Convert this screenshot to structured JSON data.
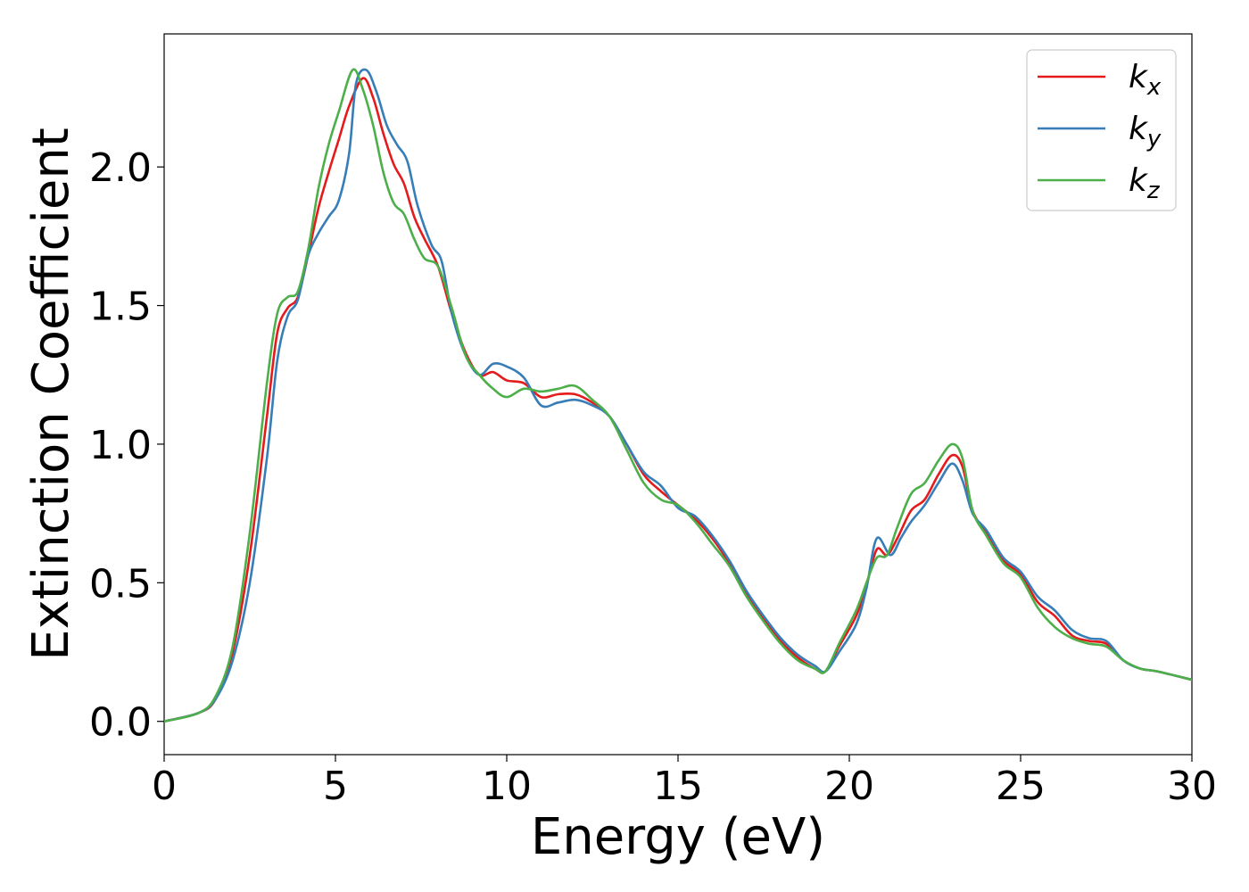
{
  "chart_data": {
    "type": "line",
    "title": "",
    "xlabel": "Energy (eV)",
    "ylabel": "Extinction Coefficient",
    "xlim": [
      0,
      30
    ],
    "ylim": [
      -0.12,
      2.48
    ],
    "xticks": [
      0,
      5,
      10,
      15,
      20,
      25,
      30
    ],
    "yticks": [
      0.0,
      0.5,
      1.0,
      1.5,
      2.0
    ],
    "xtick_labels": [
      "0",
      "5",
      "10",
      "15",
      "20",
      "25",
      "30"
    ],
    "ytick_labels": [
      "0.0",
      "0.5",
      "1.0",
      "1.5",
      "2.0"
    ],
    "grid": false,
    "legend_position": "top-right",
    "series": [
      {
        "name": "k",
        "subscript": "x",
        "color": "#e41a1c",
        "points": [
          [
            0,
            0
          ],
          [
            1,
            0.03
          ],
          [
            1.5,
            0.08
          ],
          [
            2,
            0.25
          ],
          [
            2.5,
            0.6
          ],
          [
            3,
            1.1
          ],
          [
            3.3,
            1.4
          ],
          [
            3.6,
            1.49
          ],
          [
            3.9,
            1.53
          ],
          [
            4.2,
            1.68
          ],
          [
            4.5,
            1.85
          ],
          [
            4.8,
            1.98
          ],
          [
            5.1,
            2.1
          ],
          [
            5.4,
            2.22
          ],
          [
            5.8,
            2.32
          ],
          [
            6.1,
            2.25
          ],
          [
            6.4,
            2.12
          ],
          [
            6.7,
            2.01
          ],
          [
            7,
            1.94
          ],
          [
            7.3,
            1.82
          ],
          [
            7.6,
            1.74
          ],
          [
            8,
            1.64
          ],
          [
            8.4,
            1.47
          ],
          [
            8.8,
            1.33
          ],
          [
            9.2,
            1.25
          ],
          [
            9.6,
            1.26
          ],
          [
            10,
            1.23
          ],
          [
            10.5,
            1.22
          ],
          [
            11,
            1.17
          ],
          [
            11.5,
            1.18
          ],
          [
            12,
            1.18
          ],
          [
            12.5,
            1.15
          ],
          [
            13,
            1.1
          ],
          [
            13.5,
            1.0
          ],
          [
            14,
            0.89
          ],
          [
            14.5,
            0.83
          ],
          [
            15,
            0.78
          ],
          [
            15.5,
            0.73
          ],
          [
            16,
            0.66
          ],
          [
            16.5,
            0.57
          ],
          [
            17,
            0.46
          ],
          [
            17.5,
            0.37
          ],
          [
            18,
            0.29
          ],
          [
            18.5,
            0.23
          ],
          [
            19,
            0.19
          ],
          [
            19.3,
            0.18
          ],
          [
            19.7,
            0.27
          ],
          [
            20.2,
            0.38
          ],
          [
            20.5,
            0.49
          ],
          [
            20.8,
            0.62
          ],
          [
            21.1,
            0.6
          ],
          [
            21.4,
            0.66
          ],
          [
            21.8,
            0.76
          ],
          [
            22.2,
            0.8
          ],
          [
            22.6,
            0.89
          ],
          [
            23,
            0.96
          ],
          [
            23.3,
            0.92
          ],
          [
            23.6,
            0.76
          ],
          [
            24,
            0.68
          ],
          [
            24.5,
            0.58
          ],
          [
            25,
            0.53
          ],
          [
            25.5,
            0.43
          ],
          [
            26,
            0.38
          ],
          [
            26.5,
            0.31
          ],
          [
            27,
            0.29
          ],
          [
            27.5,
            0.28
          ],
          [
            28,
            0.22
          ],
          [
            28.5,
            0.19
          ],
          [
            29,
            0.18
          ],
          [
            30,
            0.15
          ]
        ]
      },
      {
        "name": "k",
        "subscript": "y",
        "color": "#377eb8",
        "points": [
          [
            0,
            0
          ],
          [
            1,
            0.03
          ],
          [
            1.5,
            0.08
          ],
          [
            2,
            0.22
          ],
          [
            2.5,
            0.5
          ],
          [
            3,
            0.95
          ],
          [
            3.3,
            1.3
          ],
          [
            3.6,
            1.46
          ],
          [
            3.9,
            1.52
          ],
          [
            4.2,
            1.68
          ],
          [
            4.5,
            1.76
          ],
          [
            4.8,
            1.82
          ],
          [
            5.1,
            1.88
          ],
          [
            5.4,
            2.05
          ],
          [
            5.6,
            2.3
          ],
          [
            5.9,
            2.35
          ],
          [
            6.2,
            2.27
          ],
          [
            6.5,
            2.15
          ],
          [
            6.8,
            2.08
          ],
          [
            7.1,
            2.02
          ],
          [
            7.4,
            1.86
          ],
          [
            7.8,
            1.72
          ],
          [
            8.1,
            1.66
          ],
          [
            8.4,
            1.47
          ],
          [
            8.8,
            1.32
          ],
          [
            9.2,
            1.25
          ],
          [
            9.6,
            1.29
          ],
          [
            10,
            1.28
          ],
          [
            10.5,
            1.24
          ],
          [
            11,
            1.14
          ],
          [
            11.5,
            1.15
          ],
          [
            12,
            1.16
          ],
          [
            12.5,
            1.14
          ],
          [
            13,
            1.1
          ],
          [
            13.5,
            1.0
          ],
          [
            14,
            0.9
          ],
          [
            14.5,
            0.85
          ],
          [
            15,
            0.77
          ],
          [
            15.5,
            0.74
          ],
          [
            16,
            0.67
          ],
          [
            16.5,
            0.58
          ],
          [
            17,
            0.47
          ],
          [
            17.5,
            0.38
          ],
          [
            18,
            0.3
          ],
          [
            18.5,
            0.24
          ],
          [
            19,
            0.2
          ],
          [
            19.3,
            0.18
          ],
          [
            19.7,
            0.25
          ],
          [
            20.2,
            0.35
          ],
          [
            20.5,
            0.48
          ],
          [
            20.8,
            0.66
          ],
          [
            21.2,
            0.6
          ],
          [
            21.5,
            0.66
          ],
          [
            21.8,
            0.72
          ],
          [
            22.2,
            0.78
          ],
          [
            22.6,
            0.86
          ],
          [
            23,
            0.93
          ],
          [
            23.3,
            0.87
          ],
          [
            23.6,
            0.75
          ],
          [
            24,
            0.69
          ],
          [
            24.5,
            0.59
          ],
          [
            25,
            0.54
          ],
          [
            25.5,
            0.45
          ],
          [
            26,
            0.4
          ],
          [
            26.5,
            0.33
          ],
          [
            27,
            0.3
          ],
          [
            27.5,
            0.29
          ],
          [
            28,
            0.22
          ],
          [
            28.5,
            0.19
          ],
          [
            29,
            0.18
          ],
          [
            30,
            0.15
          ]
        ]
      },
      {
        "name": "k",
        "subscript": "z",
        "color": "#4daf4a",
        "points": [
          [
            0,
            0
          ],
          [
            1,
            0.03
          ],
          [
            1.5,
            0.09
          ],
          [
            2,
            0.27
          ],
          [
            2.5,
            0.68
          ],
          [
            3,
            1.22
          ],
          [
            3.3,
            1.47
          ],
          [
            3.6,
            1.53
          ],
          [
            3.9,
            1.55
          ],
          [
            4.2,
            1.7
          ],
          [
            4.5,
            1.92
          ],
          [
            4.8,
            2.08
          ],
          [
            5.1,
            2.2
          ],
          [
            5.5,
            2.35
          ],
          [
            5.8,
            2.28
          ],
          [
            6.1,
            2.15
          ],
          [
            6.4,
            1.98
          ],
          [
            6.7,
            1.87
          ],
          [
            7,
            1.83
          ],
          [
            7.3,
            1.74
          ],
          [
            7.6,
            1.67
          ],
          [
            8,
            1.64
          ],
          [
            8.4,
            1.49
          ],
          [
            8.8,
            1.32
          ],
          [
            9.2,
            1.25
          ],
          [
            9.6,
            1.2
          ],
          [
            10,
            1.17
          ],
          [
            10.5,
            1.2
          ],
          [
            11,
            1.19
          ],
          [
            11.5,
            1.2
          ],
          [
            12,
            1.21
          ],
          [
            12.5,
            1.16
          ],
          [
            13,
            1.1
          ],
          [
            13.5,
            0.98
          ],
          [
            14,
            0.86
          ],
          [
            14.5,
            0.8
          ],
          [
            15,
            0.78
          ],
          [
            15.5,
            0.72
          ],
          [
            16,
            0.64
          ],
          [
            16.5,
            0.56
          ],
          [
            17,
            0.45
          ],
          [
            17.5,
            0.36
          ],
          [
            18,
            0.28
          ],
          [
            18.5,
            0.22
          ],
          [
            19,
            0.19
          ],
          [
            19.3,
            0.18
          ],
          [
            19.7,
            0.28
          ],
          [
            20.2,
            0.4
          ],
          [
            20.5,
            0.5
          ],
          [
            20.8,
            0.59
          ],
          [
            21.1,
            0.6
          ],
          [
            21.4,
            0.7
          ],
          [
            21.8,
            0.82
          ],
          [
            22.2,
            0.86
          ],
          [
            22.6,
            0.94
          ],
          [
            23,
            1.0
          ],
          [
            23.3,
            0.95
          ],
          [
            23.6,
            0.76
          ],
          [
            24,
            0.67
          ],
          [
            24.5,
            0.57
          ],
          [
            25,
            0.52
          ],
          [
            25.5,
            0.41
          ],
          [
            26,
            0.34
          ],
          [
            26.5,
            0.3
          ],
          [
            27,
            0.28
          ],
          [
            27.5,
            0.27
          ],
          [
            28,
            0.22
          ],
          [
            28.5,
            0.19
          ],
          [
            29,
            0.18
          ],
          [
            30,
            0.15
          ]
        ]
      }
    ]
  }
}
